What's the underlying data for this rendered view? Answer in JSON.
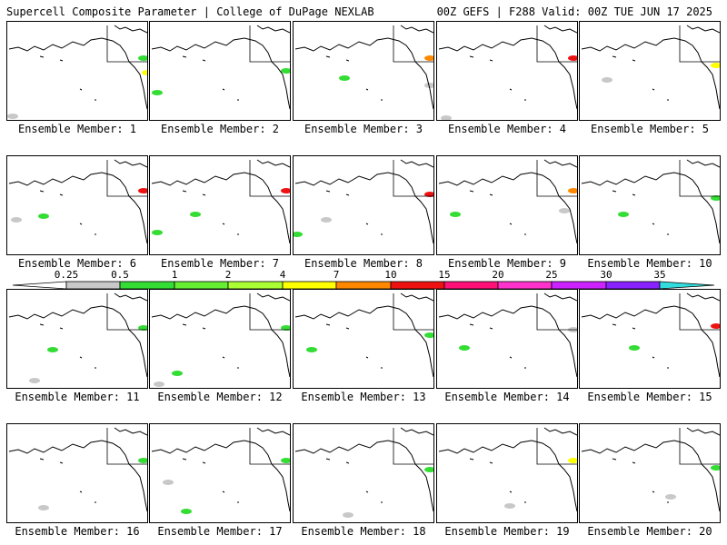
{
  "header": {
    "title": "Supercell Composite Parameter | College of DuPage NEXLAB",
    "run": "00Z GEFS | F288 Valid: 00Z TUE JUN 17 2025"
  },
  "colorbar": {
    "labels": [
      "0.25",
      "0.5",
      "1",
      "2",
      "4",
      "7",
      "10",
      "15",
      "20",
      "25",
      "30",
      "35"
    ],
    "colors": [
      "#c8c8c8",
      "#33dd33",
      "#66ee33",
      "#aaff33",
      "#ffff00",
      "#ff8800",
      "#ee1111",
      "#ff1177",
      "#ff33cc",
      "#cc22ff",
      "#8822ff",
      "#aa66ee",
      "#33dddd"
    ]
  },
  "panels": [
    {
      "label": "Ensemble Member: 1"
    },
    {
      "label": "Ensemble Member: 2"
    },
    {
      "label": "Ensemble Member: 3"
    },
    {
      "label": "Ensemble Member: 4"
    },
    {
      "label": "Ensemble Member: 5"
    },
    {
      "label": "Ensemble Member: 6"
    },
    {
      "label": "Ensemble Member: 7"
    },
    {
      "label": "Ensemble Member: 8"
    },
    {
      "label": "Ensemble Member: 9"
    },
    {
      "label": "Ensemble Member: 10"
    },
    {
      "label": "Ensemble Member: 11"
    },
    {
      "label": "Ensemble Member: 12"
    },
    {
      "label": "Ensemble Member: 13"
    },
    {
      "label": "Ensemble Member: 14"
    },
    {
      "label": "Ensemble Member: 15"
    },
    {
      "label": "Ensemble Member: 16"
    },
    {
      "label": "Ensemble Member: 17"
    },
    {
      "label": "Ensemble Member: 18"
    },
    {
      "label": "Ensemble Member: 19"
    },
    {
      "label": "Ensemble Member: 20"
    }
  ]
}
